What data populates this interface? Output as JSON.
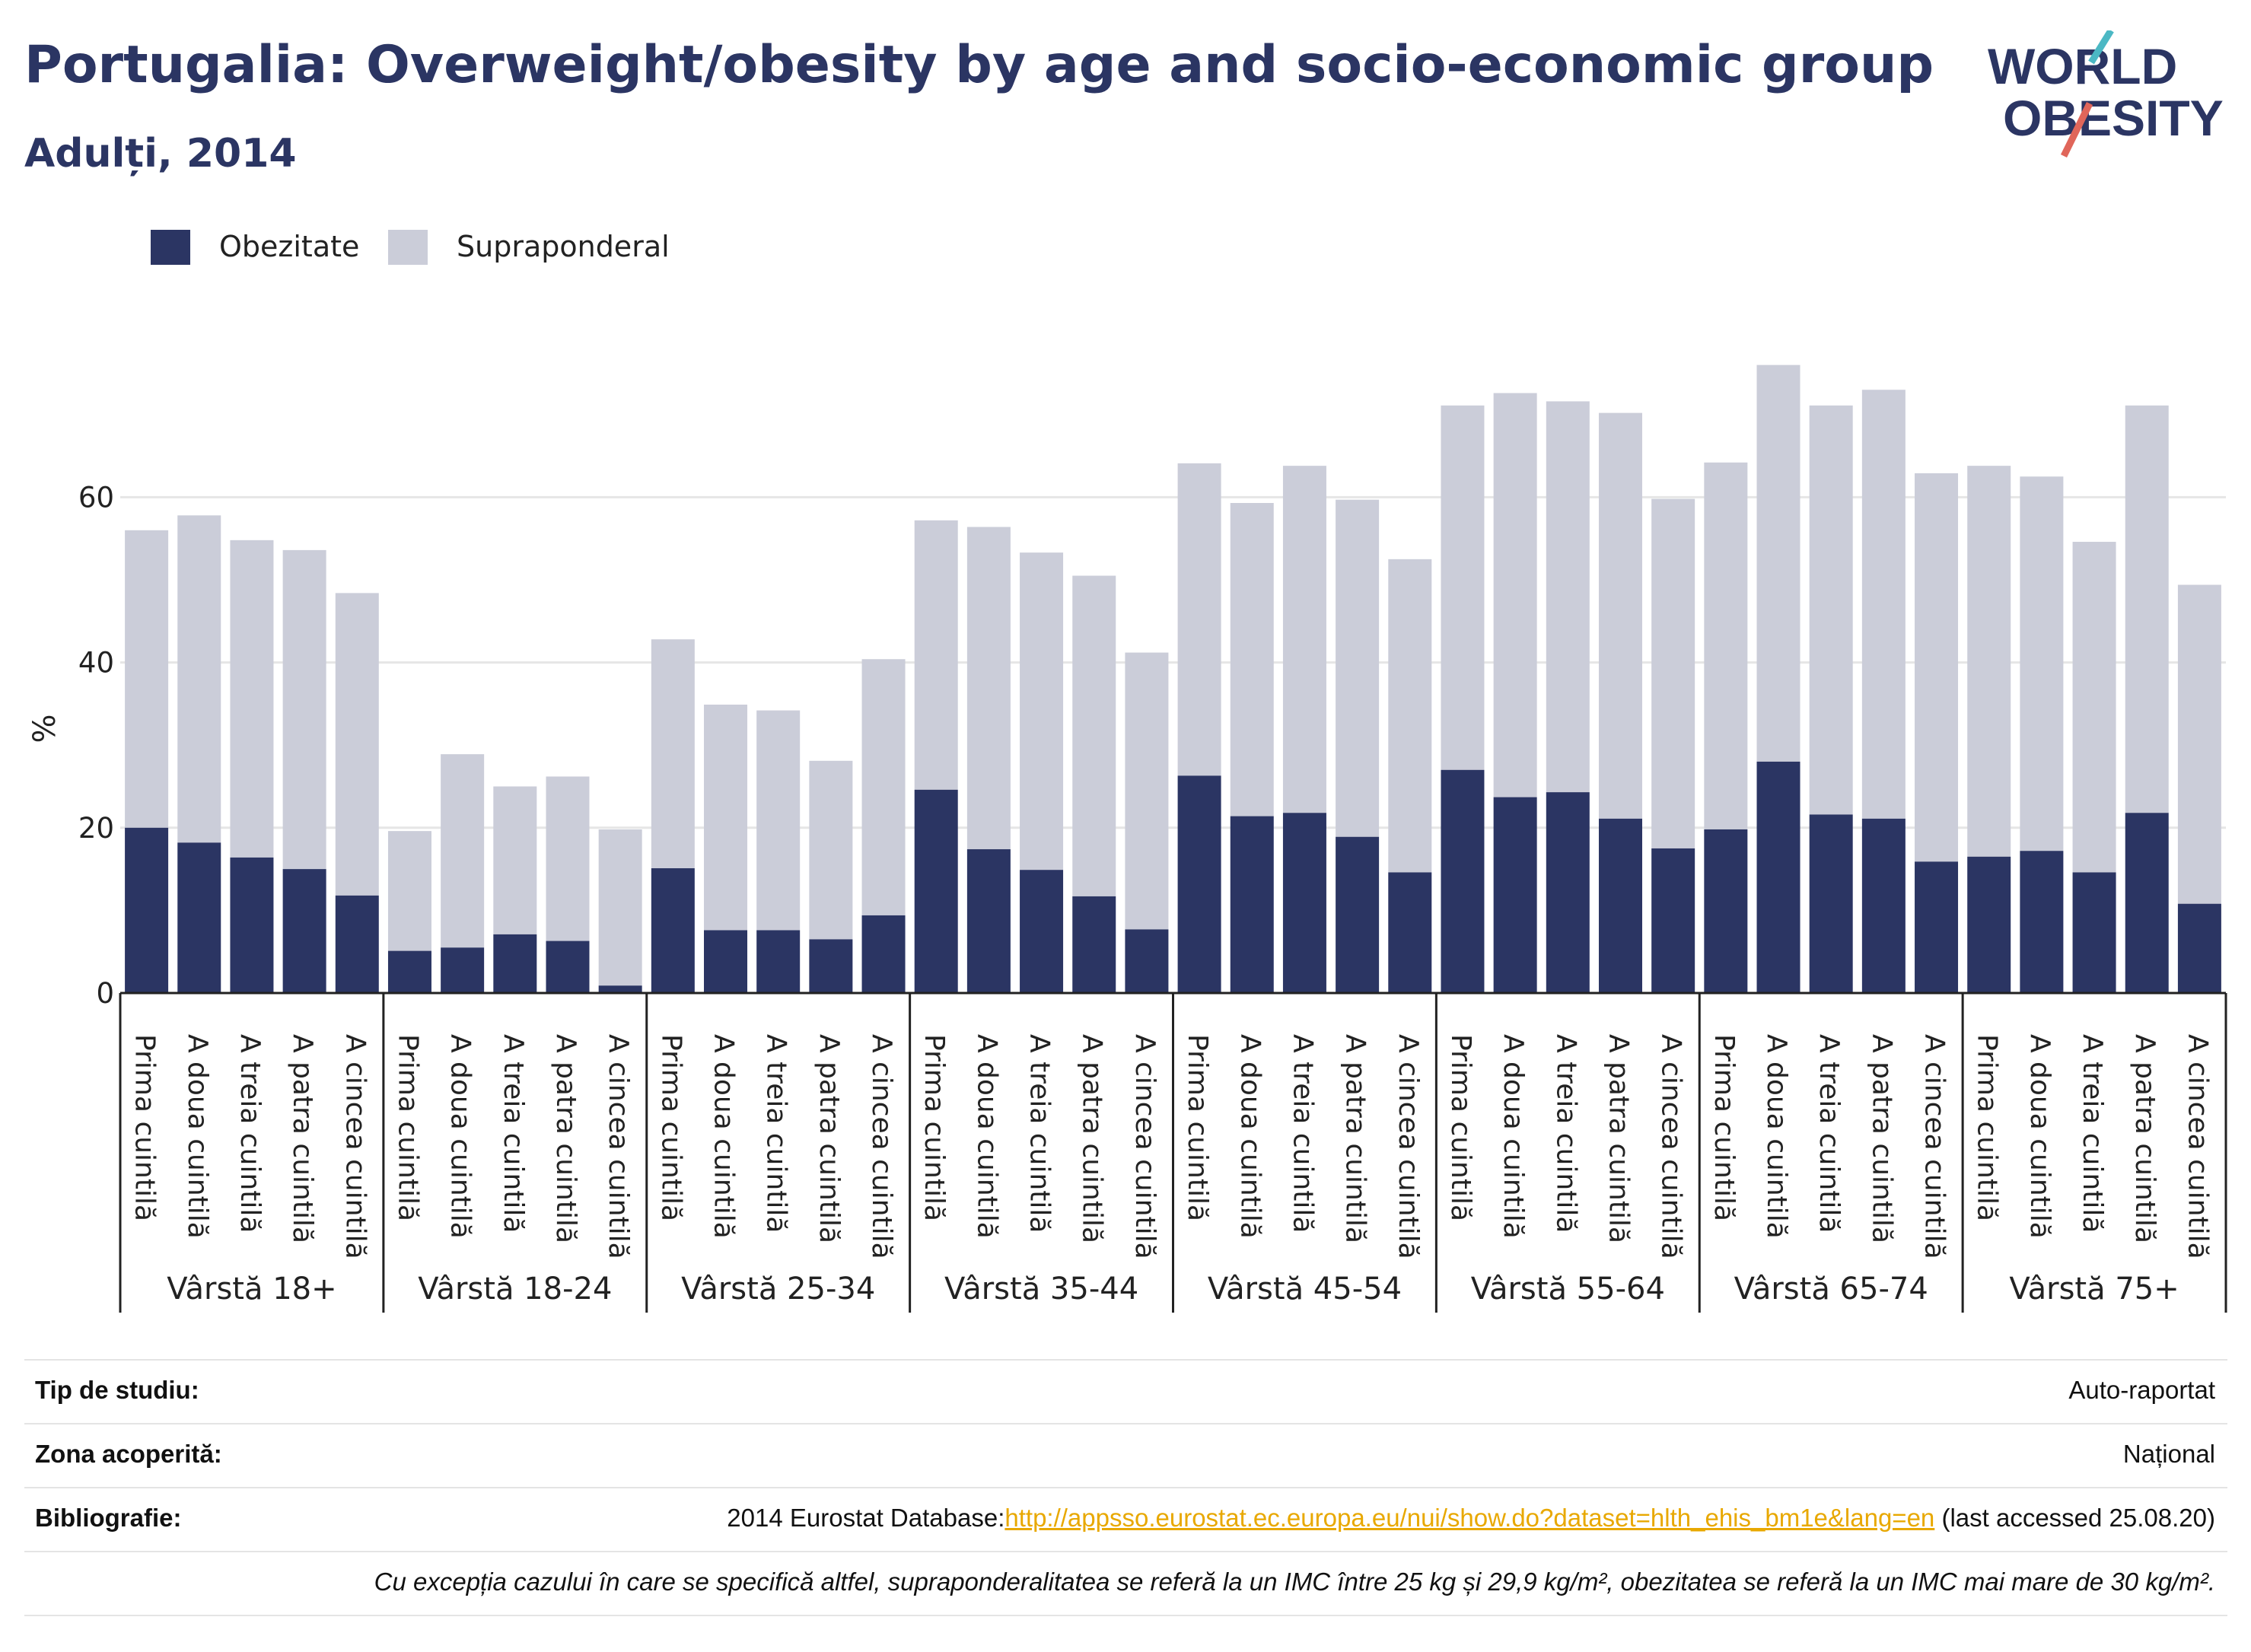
{
  "header": {
    "title": "Portugalia: Overweight/obesity by age and socio-economic group",
    "subtitle": "Adulți, 2014"
  },
  "logo": {
    "line1": "WORLD",
    "line2": "OBESITY"
  },
  "colors": {
    "obesity": "#2b3563",
    "overweight": "#cbcdd9",
    "accent_teal": "#4bb8c4",
    "accent_red": "#e0665a",
    "grid": "#e6e6e6"
  },
  "legend": [
    {
      "label": "Obezitate",
      "color": "#2b3563"
    },
    {
      "label": "Supraponderal",
      "color": "#cbcdd9"
    }
  ],
  "chart_data": {
    "type": "bar",
    "stacked": true,
    "ylabel": "%",
    "ylim": [
      0,
      80
    ],
    "yticks": [
      0,
      20,
      40,
      60
    ],
    "grid": true,
    "legend_position": "top-left",
    "groups": [
      "Vârstă 18+",
      "Vârstă 18-24",
      "Vârstă 25-34",
      "Vârstă 35-44",
      "Vârstă 45-54",
      "Vârstă 55-64",
      "Vârstă 65-74",
      "Vârstă 75+"
    ],
    "categories": [
      "Prima cuintilă",
      "A doua cuintilă",
      "A treia cuintilă",
      "A patra cuintilă",
      "A cincea cuintilă"
    ],
    "series": [
      {
        "name": "Obezitate",
        "values": [
          [
            20.0,
            18.2,
            16.4,
            15.0,
            11.8
          ],
          [
            5.1,
            5.5,
            7.1,
            6.3,
            0.9
          ],
          [
            15.1,
            7.6,
            7.6,
            6.5,
            9.4
          ],
          [
            24.6,
            17.4,
            14.9,
            11.7,
            7.7
          ],
          [
            26.3,
            21.4,
            21.8,
            18.9,
            14.6
          ],
          [
            27.0,
            23.7,
            24.3,
            21.1,
            17.5
          ],
          [
            19.8,
            28.0,
            21.6,
            21.1,
            15.9
          ],
          [
            16.5,
            17.2,
            14.6,
            21.8,
            10.8
          ]
        ]
      },
      {
        "name": "Supraponderal",
        "values": [
          [
            36.0,
            39.6,
            38.4,
            38.6,
            36.6
          ],
          [
            14.5,
            23.4,
            17.9,
            19.9,
            18.9
          ],
          [
            27.7,
            27.3,
            26.6,
            21.6,
            31.0
          ],
          [
            32.6,
            39.0,
            38.4,
            38.8,
            33.5
          ],
          [
            37.8,
            37.9,
            42.0,
            40.8,
            37.9
          ],
          [
            44.1,
            48.9,
            47.3,
            49.1,
            42.3
          ],
          [
            44.4,
            48.0,
            49.5,
            51.9,
            47.0
          ],
          [
            47.3,
            45.3,
            40.0,
            49.3,
            38.6
          ]
        ]
      }
    ]
  },
  "info": {
    "study_type_label": "Tip de studiu:",
    "study_type_value": "Auto-raportat",
    "coverage_label": "Zona acoperită:",
    "coverage_value": "Național",
    "bibliography_label": "Bibliografie:",
    "bibliography_prefix": "2014 Eurostat Database:",
    "bibliography_link": "http://appsso.eurostat.ec.europa.eu/nui/show.do?dataset=hlth_ehis_bm1e&lang=en",
    "bibliography_suffix": " (last accessed 25.08.20)",
    "note": "Cu excepția cazului în care se specifică altfel, supraponderalitatea se referă la un IMC între 25 kg și 29,9 kg/m², obezitatea se referă la un IMC mai mare de 30 kg/m²."
  }
}
